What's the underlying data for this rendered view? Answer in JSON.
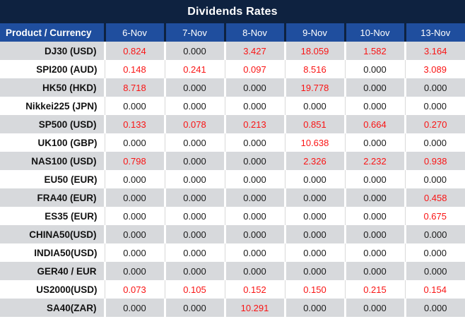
{
  "title": "Dividends Rates",
  "colors": {
    "title_bg": "#0e2240",
    "header_bg": "#1f4e9e",
    "row_alt_bg": "#d7d9dc",
    "nonzero_value": "#fa1414",
    "zero_value": "#1a1a1a",
    "header_text": "#ffffff"
  },
  "chart_data": {
    "type": "table",
    "title": "Dividends Rates",
    "columns": [
      "Product / Currency",
      "6-Nov",
      "7-Nov",
      "8-Nov",
      "9-Nov",
      "10-Nov",
      "13-Nov"
    ],
    "value_format": "3-decimals",
    "rows": [
      [
        "DJ30 (USD)",
        0.824,
        0.0,
        3.427,
        18.059,
        1.582,
        3.164
      ],
      [
        "SPI200 (AUD)",
        0.148,
        0.241,
        0.097,
        8.516,
        0.0,
        3.089
      ],
      [
        "HK50 (HKD)",
        8.718,
        0.0,
        0.0,
        19.778,
        0.0,
        0.0
      ],
      [
        "Nikkei225 (JPN)",
        0.0,
        0.0,
        0.0,
        0.0,
        0.0,
        0.0
      ],
      [
        "SP500 (USD)",
        0.133,
        0.078,
        0.213,
        0.851,
        0.664,
        0.27
      ],
      [
        "UK100 (GBP)",
        0.0,
        0.0,
        0.0,
        10.638,
        0.0,
        0.0
      ],
      [
        "NAS100 (USD)",
        0.798,
        0.0,
        0.0,
        2.326,
        2.232,
        0.938
      ],
      [
        "EU50 (EUR)",
        0.0,
        0.0,
        0.0,
        0.0,
        0.0,
        0.0
      ],
      [
        "FRA40 (EUR)",
        0.0,
        0.0,
        0.0,
        0.0,
        0.0,
        0.458
      ],
      [
        "ES35 (EUR)",
        0.0,
        0.0,
        0.0,
        0.0,
        0.0,
        0.675
      ],
      [
        "CHINA50(USD)",
        0.0,
        0.0,
        0.0,
        0.0,
        0.0,
        0.0
      ],
      [
        "INDIA50(USD)",
        0.0,
        0.0,
        0.0,
        0.0,
        0.0,
        0.0
      ],
      [
        "GER40 / EUR",
        0.0,
        0.0,
        0.0,
        0.0,
        0.0,
        0.0
      ],
      [
        "US2000(USD)",
        0.073,
        0.105,
        0.152,
        0.15,
        0.215,
        0.154
      ],
      [
        "SA40(ZAR)",
        0.0,
        0.0,
        10.291,
        0.0,
        0.0,
        0.0
      ]
    ]
  }
}
